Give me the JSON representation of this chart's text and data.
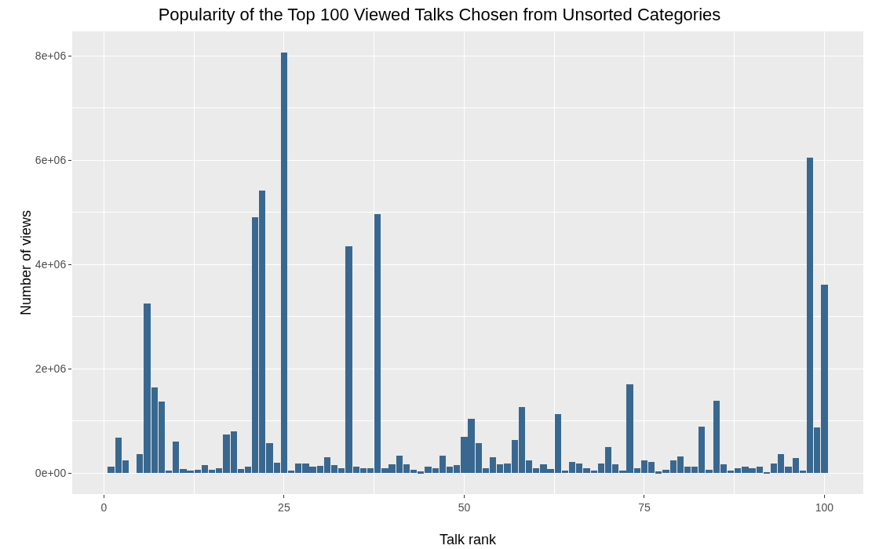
{
  "chart_data": {
    "type": "bar",
    "title": "Popularity of the Top 100 Viewed Talks Chosen from Unsorted Categories",
    "xlabel": "Talk rank",
    "ylabel": "Number of views",
    "x": [
      1,
      2,
      3,
      4,
      5,
      6,
      7,
      8,
      9,
      10,
      11,
      12,
      13,
      14,
      15,
      16,
      17,
      18,
      19,
      20,
      21,
      22,
      23,
      24,
      25,
      26,
      27,
      28,
      29,
      30,
      31,
      32,
      33,
      34,
      35,
      36,
      37,
      38,
      39,
      40,
      41,
      42,
      43,
      44,
      45,
      46,
      47,
      48,
      49,
      50,
      51,
      52,
      53,
      54,
      55,
      56,
      57,
      58,
      59,
      60,
      61,
      62,
      63,
      64,
      65,
      66,
      67,
      68,
      69,
      70,
      71,
      72,
      73,
      74,
      75,
      76,
      77,
      78,
      79,
      80,
      81,
      82,
      83,
      84,
      85,
      86,
      87,
      88,
      89,
      90,
      91,
      92,
      93,
      94,
      95,
      96,
      97,
      98,
      99,
      100
    ],
    "values": [
      130000,
      690000,
      250000,
      null,
      360000,
      3260000,
      1650000,
      1380000,
      50000,
      610000,
      80000,
      50000,
      70000,
      160000,
      70000,
      100000,
      740000,
      800000,
      80000,
      130000,
      4900000,
      5420000,
      580000,
      200000,
      8070000,
      50000,
      190000,
      190000,
      120000,
      140000,
      310000,
      150000,
      100000,
      4350000,
      130000,
      100000,
      100000,
      4960000,
      100000,
      170000,
      340000,
      170000,
      60000,
      30000,
      130000,
      100000,
      340000,
      130000,
      160000,
      700000,
      1050000,
      580000,
      100000,
      300000,
      170000,
      190000,
      630000,
      1270000,
      250000,
      100000,
      170000,
      80000,
      1130000,
      50000,
      210000,
      190000,
      100000,
      50000,
      190000,
      500000,
      170000,
      50000,
      1710000,
      100000,
      250000,
      210000,
      30000,
      70000,
      250000,
      320000,
      120000,
      120000,
      890000,
      70000,
      1390000,
      170000,
      50000,
      90000,
      120000,
      90000,
      130000,
      20000,
      190000,
      360000,
      120000,
      290000,
      50000,
      6050000,
      880000,
      3620000
    ],
    "color": "#386890",
    "xlim": [
      -4.4,
      105.4
    ],
    "xticks": [
      0,
      25,
      50,
      75,
      100
    ],
    "ylim": [
      -400000,
      8470000
    ],
    "yticks": [
      {
        "value": 0,
        "label": "0e+00"
      },
      {
        "value": 2000000,
        "label": "2e+06"
      },
      {
        "value": 4000000,
        "label": "4e+06"
      },
      {
        "value": 6000000,
        "label": "6e+06"
      },
      {
        "value": 8000000,
        "label": "8e+06"
      }
    ],
    "grid": true
  }
}
